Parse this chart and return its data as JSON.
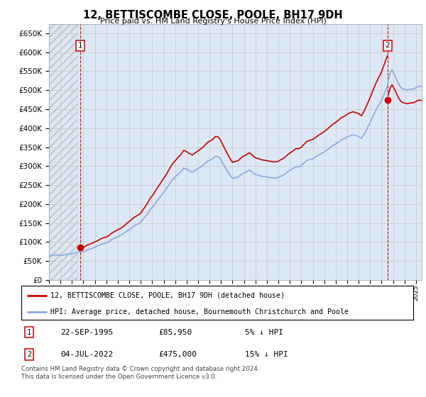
{
  "title": "12, BETTISCOMBE CLOSE, POOLE, BH17 9DH",
  "subtitle": "Price paid vs. HM Land Registry's House Price Index (HPI)",
  "ylim": [
    0,
    675000
  ],
  "yticks": [
    0,
    50000,
    100000,
    150000,
    200000,
    250000,
    300000,
    350000,
    400000,
    450000,
    500000,
    550000,
    600000,
    650000
  ],
  "xlim_start": 1993.0,
  "xlim_end": 2025.5,
  "sale1_x": 1995.72,
  "sale1_y": 85950,
  "sale1_label": "1",
  "sale2_x": 2022.51,
  "sale2_y": 475000,
  "sale2_label": "2",
  "property_line_color": "#cc0000",
  "hpi_line_color": "#88aadd",
  "grid_color": "#cccccc",
  "bg_color": "#ffffff",
  "hpi_bg_color": "#dce8f5",
  "legend_property": "12, BETTISCOMBE CLOSE, POOLE, BH17 9DH (detached house)",
  "legend_hpi": "HPI: Average price, detached house, Bournemouth Christchurch and Poole",
  "table_row1": [
    "1",
    "22-SEP-1995",
    "£85,950",
    "5% ↓ HPI"
  ],
  "table_row2": [
    "2",
    "04-JUL-2022",
    "£475,000",
    "15% ↓ HPI"
  ],
  "footer": "Contains HM Land Registry data © Crown copyright and database right 2024.\nThis data is licensed under the Open Government Licence v3.0."
}
